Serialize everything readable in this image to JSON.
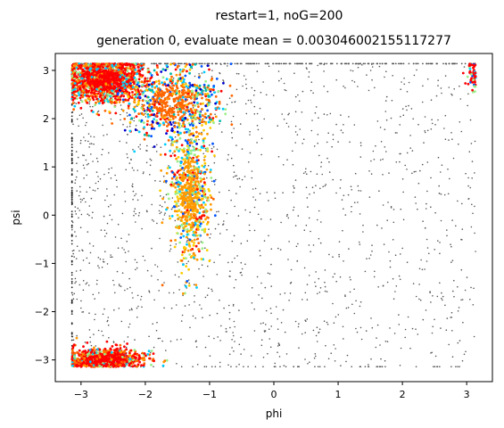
{
  "chart_data": {
    "type": "scatter",
    "suptitle": "restart=1, noG=200",
    "title": "generation 0, evaluate mean = 0.003046002155117277",
    "xlabel": "phi",
    "ylabel": "psi",
    "xlim": [
      -3.4,
      3.4
    ],
    "ylim": [
      -3.45,
      3.35
    ],
    "x_ticks": [
      -3,
      -2,
      -1,
      0,
      1,
      2,
      3
    ],
    "y_ticks": [
      -3,
      -2,
      -1,
      0,
      1,
      2,
      3
    ],
    "x_tick_labels": [
      "−3",
      "−2",
      "−1",
      "0",
      "1",
      "2",
      "3"
    ],
    "y_tick_labels": [
      "−3",
      "−2",
      "−1",
      "0",
      "1",
      "2",
      "3"
    ],
    "grid": false,
    "legend": "none",
    "colors": {
      "background_points": "#555555",
      "cluster_palette": [
        "#ff0000",
        "#ff6600",
        "#ff9900",
        "#ffcc00",
        "#99ee88",
        "#00ccff",
        "#0055ff",
        "#0000cc",
        "#00bbaa"
      ]
    },
    "series": [
      {
        "description_of_region": "upper-left cluster",
        "center": [
          -2.65,
          2.8
        ],
        "spread": [
          0.3,
          0.22
        ],
        "dominant_color": "#ff0000"
      },
      {
        "description_of_region": "upper-middle band",
        "center": [
          -1.55,
          2.35
        ],
        "spread": [
          0.35,
          0.35
        ],
        "dominant_color": "#ff6600"
      },
      {
        "description_of_region": "middle column",
        "center": [
          -1.3,
          0.5
        ],
        "spread": [
          0.15,
          0.7
        ],
        "dominant_color": "#ff9900"
      },
      {
        "description_of_region": "bottom-left cluster",
        "center": [
          -2.65,
          -3.0
        ],
        "spread": [
          0.3,
          0.12
        ],
        "dominant_color": "#ff0000"
      },
      {
        "description_of_region": "right edge",
        "center": [
          3.1,
          2.9
        ],
        "spread": [
          0.05,
          0.2
        ],
        "dominant_color": "#ff0000"
      }
    ]
  }
}
